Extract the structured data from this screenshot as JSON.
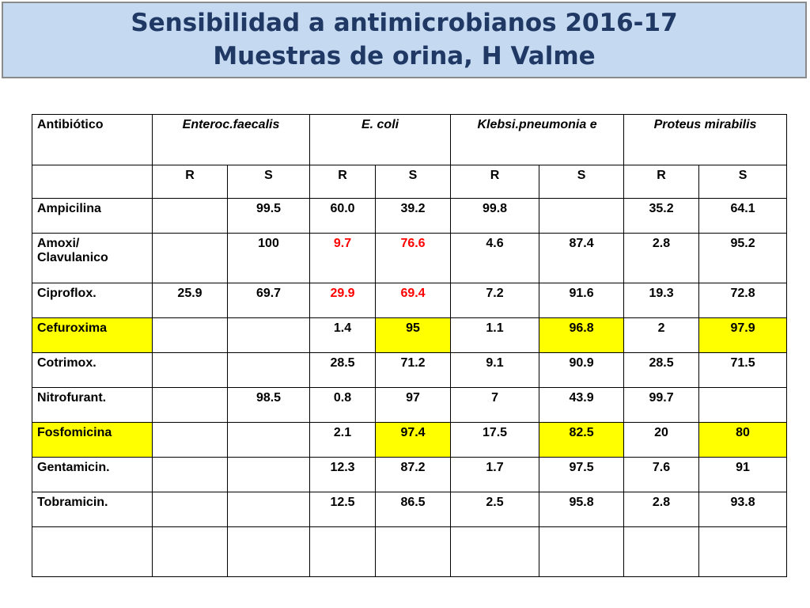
{
  "title": {
    "line1": "Sensibilidad a antimicrobianos 2016-17",
    "line2": "Muestras de orina, H Valme"
  },
  "colors": {
    "highlight": "#ffff00",
    "alert": "#ff0000",
    "title_bg": "#c5d9f1",
    "title_text": "#1f3864"
  },
  "table": {
    "header": {
      "antibiotic": "Antibiótico",
      "species": [
        "Enteroc.faecalis",
        "E. coli",
        "Klebsi.pneumonia e",
        "Proteus mirabilis"
      ]
    },
    "subheader": [
      "R",
      "S",
      "R",
      "S",
      "R",
      "S",
      "R",
      "S"
    ],
    "rows": [
      {
        "name": "Ampicilina",
        "values": [
          "",
          "99.5",
          "60.0",
          "39.2",
          "99.8",
          "",
          "35.2",
          "64.1"
        ]
      },
      {
        "name": "Amoxi/ Clavulanico",
        "values": [
          "",
          "100",
          "9.7",
          "76.6",
          "4.6",
          "87.4",
          "2.8",
          "95.2"
        ]
      },
      {
        "name": "Ciproflox.",
        "values": [
          "25.9",
          "69.7",
          "29.9",
          "69.4",
          "7.2",
          "91.6",
          "19.3",
          "72.8"
        ]
      },
      {
        "name": "Cefuroxima",
        "values": [
          "",
          "",
          "1.4",
          "95",
          "1.1",
          "96.8",
          "2",
          "97.9"
        ]
      },
      {
        "name": "Cotrimox.",
        "values": [
          "",
          "",
          "28.5",
          "71.2",
          "9.1",
          "90.9",
          "28.5",
          "71.5"
        ]
      },
      {
        "name": "Nitrofurant.",
        "values": [
          "",
          "98.5",
          "0.8",
          "97",
          "7",
          "43.9",
          "99.7",
          ""
        ]
      },
      {
        "name": "Fosfomicina",
        "values": [
          "",
          "",
          "2.1",
          "97.4",
          "17.5",
          "82.5",
          "20",
          "80"
        ]
      },
      {
        "name": "Gentamicin.",
        "values": [
          "",
          "",
          "12.3",
          "87.2",
          "1.7",
          "97.5",
          "7.6",
          "91"
        ]
      },
      {
        "name": "Tobramicin.",
        "values": [
          "",
          "",
          "12.5",
          "86.5",
          "2.5",
          "95.8",
          "2.8",
          "93.8"
        ]
      },
      {
        "name": "",
        "values": [
          "",
          "",
          "",
          "",
          "",
          "",
          "",
          ""
        ]
      }
    ]
  }
}
